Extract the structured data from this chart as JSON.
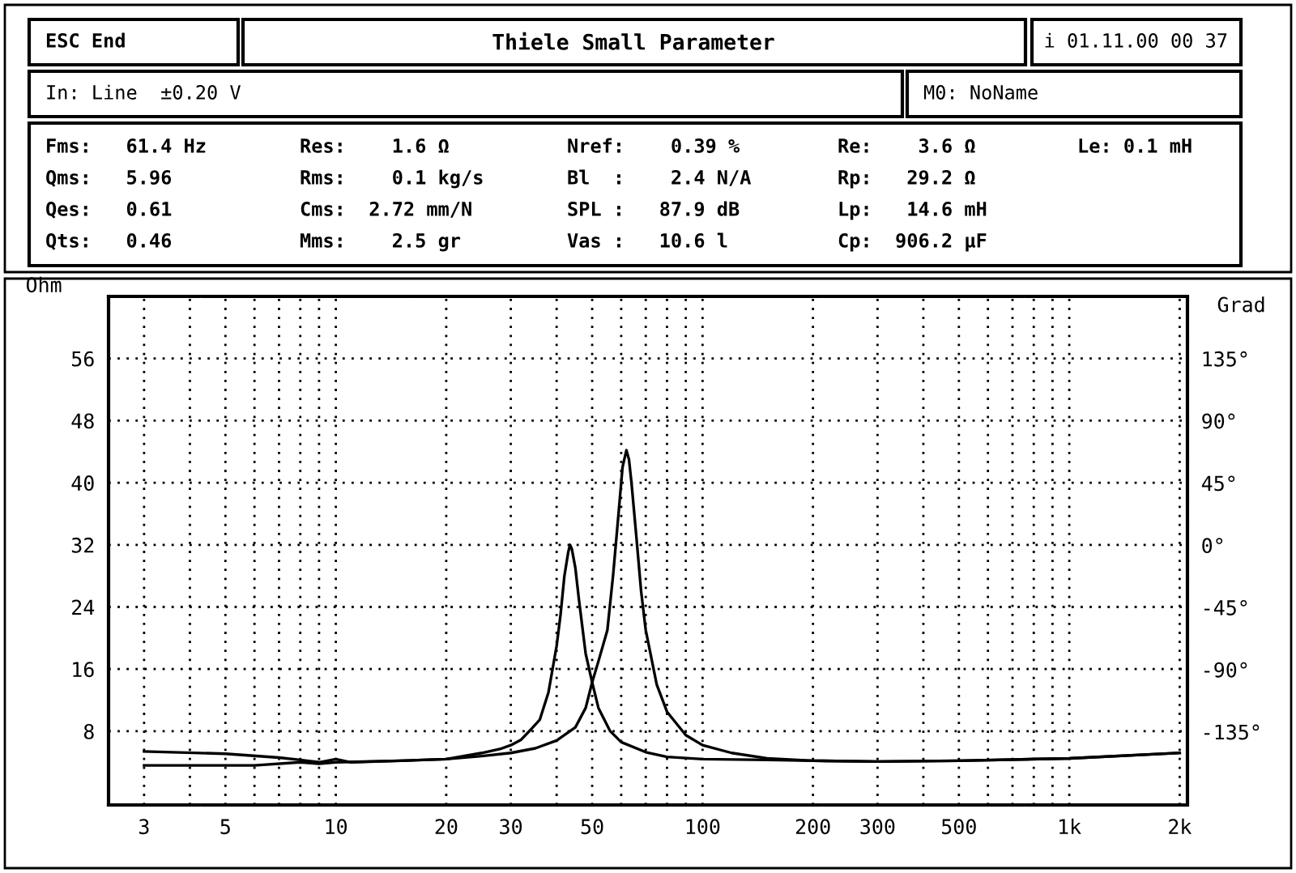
{
  "chart_data": {
    "type": "line",
    "title": "Thiele Small Parameter",
    "ylabel": "Ohm",
    "y2label": "Grad",
    "annotations": [
      "ESC End",
      "i 01.11.00 00 37",
      "In: Line  ±0.20 V",
      "M0: NoName",
      "Fms:   61.4 Hz",
      "Qms:   5.96",
      "Qes:   0.61",
      "Qts:   0.46",
      "Res:    1.6 Ω",
      "Rms:    0.1 kg/s",
      "Cms:  2.72 mm/N",
      "Mms:    2.5 gr",
      "Nref:    0.39 %",
      "Bl  :    2.4 N/A",
      "SPL :   87.9 dB",
      "Vas :   10.6 l",
      "Re:    3.6 Ω",
      "Rp:   29.2 Ω",
      "Lp:   14.6 mH",
      "Cp:  906.2 µF",
      "Le: 0.1 mH"
    ],
    "log": "x",
    "grid": true,
    "xlim": [
      2.4,
      2100
    ],
    "xticks": [
      3,
      {
        "value": 4,
        "label": null
      },
      5,
      {
        "value": 6,
        "label": null
      },
      {
        "value": 7,
        "label": null
      },
      {
        "value": 8,
        "label": null
      },
      {
        "value": 9,
        "label": null
      },
      10,
      20,
      30,
      {
        "value": 40,
        "label": null
      },
      50,
      {
        "value": 60,
        "label": null
      },
      {
        "value": 70,
        "label": null
      },
      {
        "value": 80,
        "label": null
      },
      {
        "value": 90,
        "label": null
      },
      100,
      200,
      300,
      {
        "value": 400,
        "label": null
      },
      500,
      {
        "value": 600,
        "label": null
      },
      {
        "value": 700,
        "label": null
      },
      {
        "value": 800,
        "label": null
      },
      {
        "value": 900,
        "label": null
      },
      {
        "value": 1000,
        "label": "1k"
      },
      {
        "value": 2000,
        "label": "2k"
      }
    ],
    "ylim": [
      -1.5,
      64
    ],
    "yticks": [
      8,
      16,
      24,
      32,
      40,
      48,
      56
    ],
    "y2lim": [
      -188,
      180
    ],
    "y2ticks": [
      {
        "value": -135,
        "label": "-135°"
      },
      {
        "value": -90,
        "label": "-90°"
      },
      {
        "value": -45,
        "label": "-45°"
      },
      {
        "value": 0,
        "label": "0°"
      },
      {
        "value": 45,
        "label": "45°"
      },
      {
        "value": 90,
        "label": "90°"
      },
      {
        "value": 135,
        "label": "135°"
      }
    ],
    "series": [
      {
        "color": "#000000",
        "x": [
          3,
          5,
          7,
          8,
          9,
          10,
          11,
          15,
          20,
          25,
          28,
          30,
          32,
          34,
          36,
          38,
          40,
          41,
          42,
          43,
          43.5,
          44,
          45,
          46,
          48,
          50,
          52,
          56,
          60,
          70,
          80,
          100,
          150,
          200,
          300,
          500,
          1000,
          2000
        ],
        "values": [
          5.4,
          5.1,
          4.6,
          4.3,
          4.0,
          4.4,
          4.0,
          4.2,
          4.4,
          5.2,
          5.7,
          6.2,
          6.9,
          8.2,
          9.5,
          13,
          19,
          23,
          28,
          31,
          32,
          31.5,
          29,
          25,
          18,
          14.3,
          11,
          8,
          6.6,
          5.3,
          4.7,
          4.4,
          4.3,
          4.2,
          4.1,
          4.2,
          4.5,
          5.2
        ]
      },
      {
        "color": "#000000",
        "x": [
          3,
          6,
          8,
          9,
          10,
          15,
          20,
          25,
          30,
          35,
          40,
          45,
          48,
          50,
          52,
          55,
          57,
          59,
          60.5,
          62,
          63,
          64,
          66,
          68,
          70,
          75,
          80,
          90,
          100,
          120,
          150,
          200,
          300,
          500,
          1000,
          2000
        ],
        "values": [
          3.6,
          3.6,
          4.0,
          3.8,
          4.0,
          4.2,
          4.4,
          4.8,
          5.2,
          5.8,
          6.8,
          8.5,
          11,
          14.3,
          17,
          21,
          28,
          36,
          42,
          44.2,
          43,
          40,
          33,
          26,
          21,
          14,
          10.5,
          7.5,
          6.2,
          5.2,
          4.5,
          4.2,
          4.1,
          4.2,
          4.5,
          5.2
        ]
      }
    ]
  }
}
